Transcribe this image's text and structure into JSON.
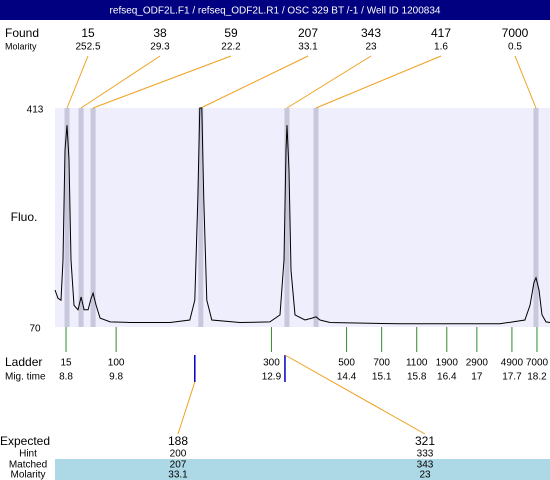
{
  "header": {
    "title": "refseq_ODF2L.F1 / refseq_ODF2L.R1 / OSC 329 BT /-1 / Well ID 1200834"
  },
  "chart_data": {
    "type": "line",
    "y_label": "Fluo.",
    "color": "#000000",
    "xlim": [
      8.58,
      18.46
    ],
    "ylim": [
      70,
      413
    ],
    "yticks": [
      70,
      413
    ],
    "x": [
      8.58,
      8.64,
      8.7,
      8.74,
      8.78,
      8.82,
      8.86,
      8.9,
      8.96,
      9.04,
      9.1,
      9.16,
      9.24,
      9.3,
      9.34,
      9.4,
      9.48,
      9.68,
      10.08,
      10.88,
      11.27,
      11.37,
      11.43,
      11.47,
      11.51,
      11.55,
      11.61,
      11.71,
      12.27,
      12.87,
      13.07,
      13.15,
      13.19,
      13.21,
      13.25,
      13.29,
      13.37,
      13.57,
      13.71,
      13.79,
      13.87,
      14.07,
      15.47,
      17.46,
      17.96,
      18.06,
      18.14,
      18.18,
      18.24,
      18.3,
      18.38,
      18.46
    ],
    "values": [
      128,
      115,
      112,
      175,
      347,
      386,
      332,
      175,
      104,
      97,
      117,
      97,
      97,
      115,
      123,
      104,
      84,
      78,
      77,
      77,
      81,
      112,
      269,
      413,
      413,
      269,
      112,
      81,
      77,
      78,
      89,
      175,
      347,
      386,
      316,
      159,
      89,
      81,
      84,
      86,
      81,
      77,
      75,
      75,
      81,
      104,
      140,
      147,
      128,
      89,
      78,
      77
    ],
    "found": {
      "label": "Found",
      "molarity_label": "Molarity",
      "sizes": [
        15,
        38,
        59,
        207,
        343,
        417,
        7000
      ],
      "molarities": [
        252.5,
        29.3,
        22.2,
        33.1,
        23,
        1.6,
        0.5
      ],
      "x": [
        8.82,
        9.1,
        9.34,
        11.49,
        13.21,
        13.79,
        18.18
      ]
    },
    "ladder": {
      "label": "Ladder",
      "time_label": "Mig. time",
      "sizes": [
        15,
        100,
        300,
        500,
        700,
        1100,
        1900,
        2900,
        4900,
        7000
      ],
      "times": [
        8.8,
        9.8,
        12.9,
        14.4,
        15.1,
        15.8,
        16.4,
        17,
        17.7,
        18.2
      ]
    },
    "expected": {
      "label": "Expected",
      "sizes": [
        188,
        321
      ],
      "x": [
        11.37,
        13.17
      ],
      "hint_label": "Hint",
      "hints": [
        200,
        333
      ],
      "matched_label": "Matched",
      "matched": [
        207,
        343
      ],
      "molarity_label": "Molarity",
      "molarities": [
        33.1,
        23
      ]
    }
  }
}
